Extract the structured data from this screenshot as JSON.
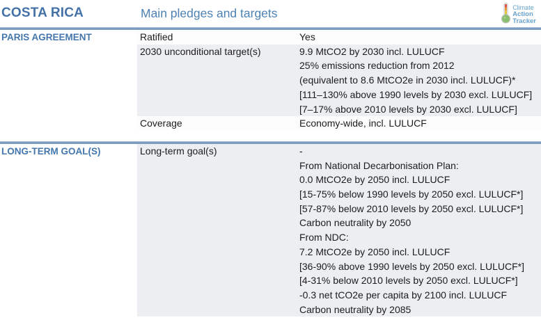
{
  "header": {
    "country": "COSTA RICA",
    "page_title": "Main pledges and targets",
    "logo": {
      "icon": "thermometer-icon",
      "line1": "Climate",
      "line2": "Action",
      "line3": "Tracker"
    }
  },
  "colors": {
    "heading_blue": "#4472a8",
    "subtitle_blue": "#4d82b3",
    "section_title_blue": "#4377ae",
    "divider_blue": "#7d9cbf",
    "shaded_row_bg": "#eceef1",
    "body_text": "#1c1c1c",
    "logo_blue": "#66a2cf"
  },
  "sections": [
    {
      "title": "PARIS AGREEMENT",
      "rows": [
        {
          "label": "Ratified",
          "values": [
            "Yes"
          ]
        },
        {
          "label": "2030 unconditional target(s)",
          "values": [
            "9.9 MtCO2 by 2030 incl. LULUCF",
            "25% emissions reduction from 2012",
            "(equivalent to 8.6 MtCO2e in 2030 incl. LULUCF)*",
            "[111–130% above 1990 levels by 2030 excl. LULUCF]",
            "[7–17% above 2010 levels by 2030 excl. LULUCF]"
          ]
        },
        {
          "label": "Coverage",
          "values": [
            "Economy-wide, incl. LULUCF"
          ]
        }
      ]
    },
    {
      "title": "LONG-TERM GOAL(S)",
      "rows": [
        {
          "label": "Long-term goal(s)",
          "values": [
            "-",
            "From National Decarbonisation Plan:",
            "0.0 MtCO2e by 2050 incl. LULUCF",
            "[15-75% below 1990 levels by 2050 excl. LULUCF*]",
            "[57-87% below 2010 levels by 2050 excl. LULUCF*]",
            "Carbon neutrality by 2050",
            "From NDC:",
            "7.2 MtCO2e by 2050 incl. LULUCF",
            "[36-90% above 1990 levels by 2050 excl. LULUCF*]",
            "[4-31% below 2010 levels by 2050 excl. LULUCF*]",
            "-0.3 net tCO2e per capita by 2100 incl. LULUCF",
            "Carbon neutrality by 2085"
          ]
        }
      ]
    }
  ]
}
